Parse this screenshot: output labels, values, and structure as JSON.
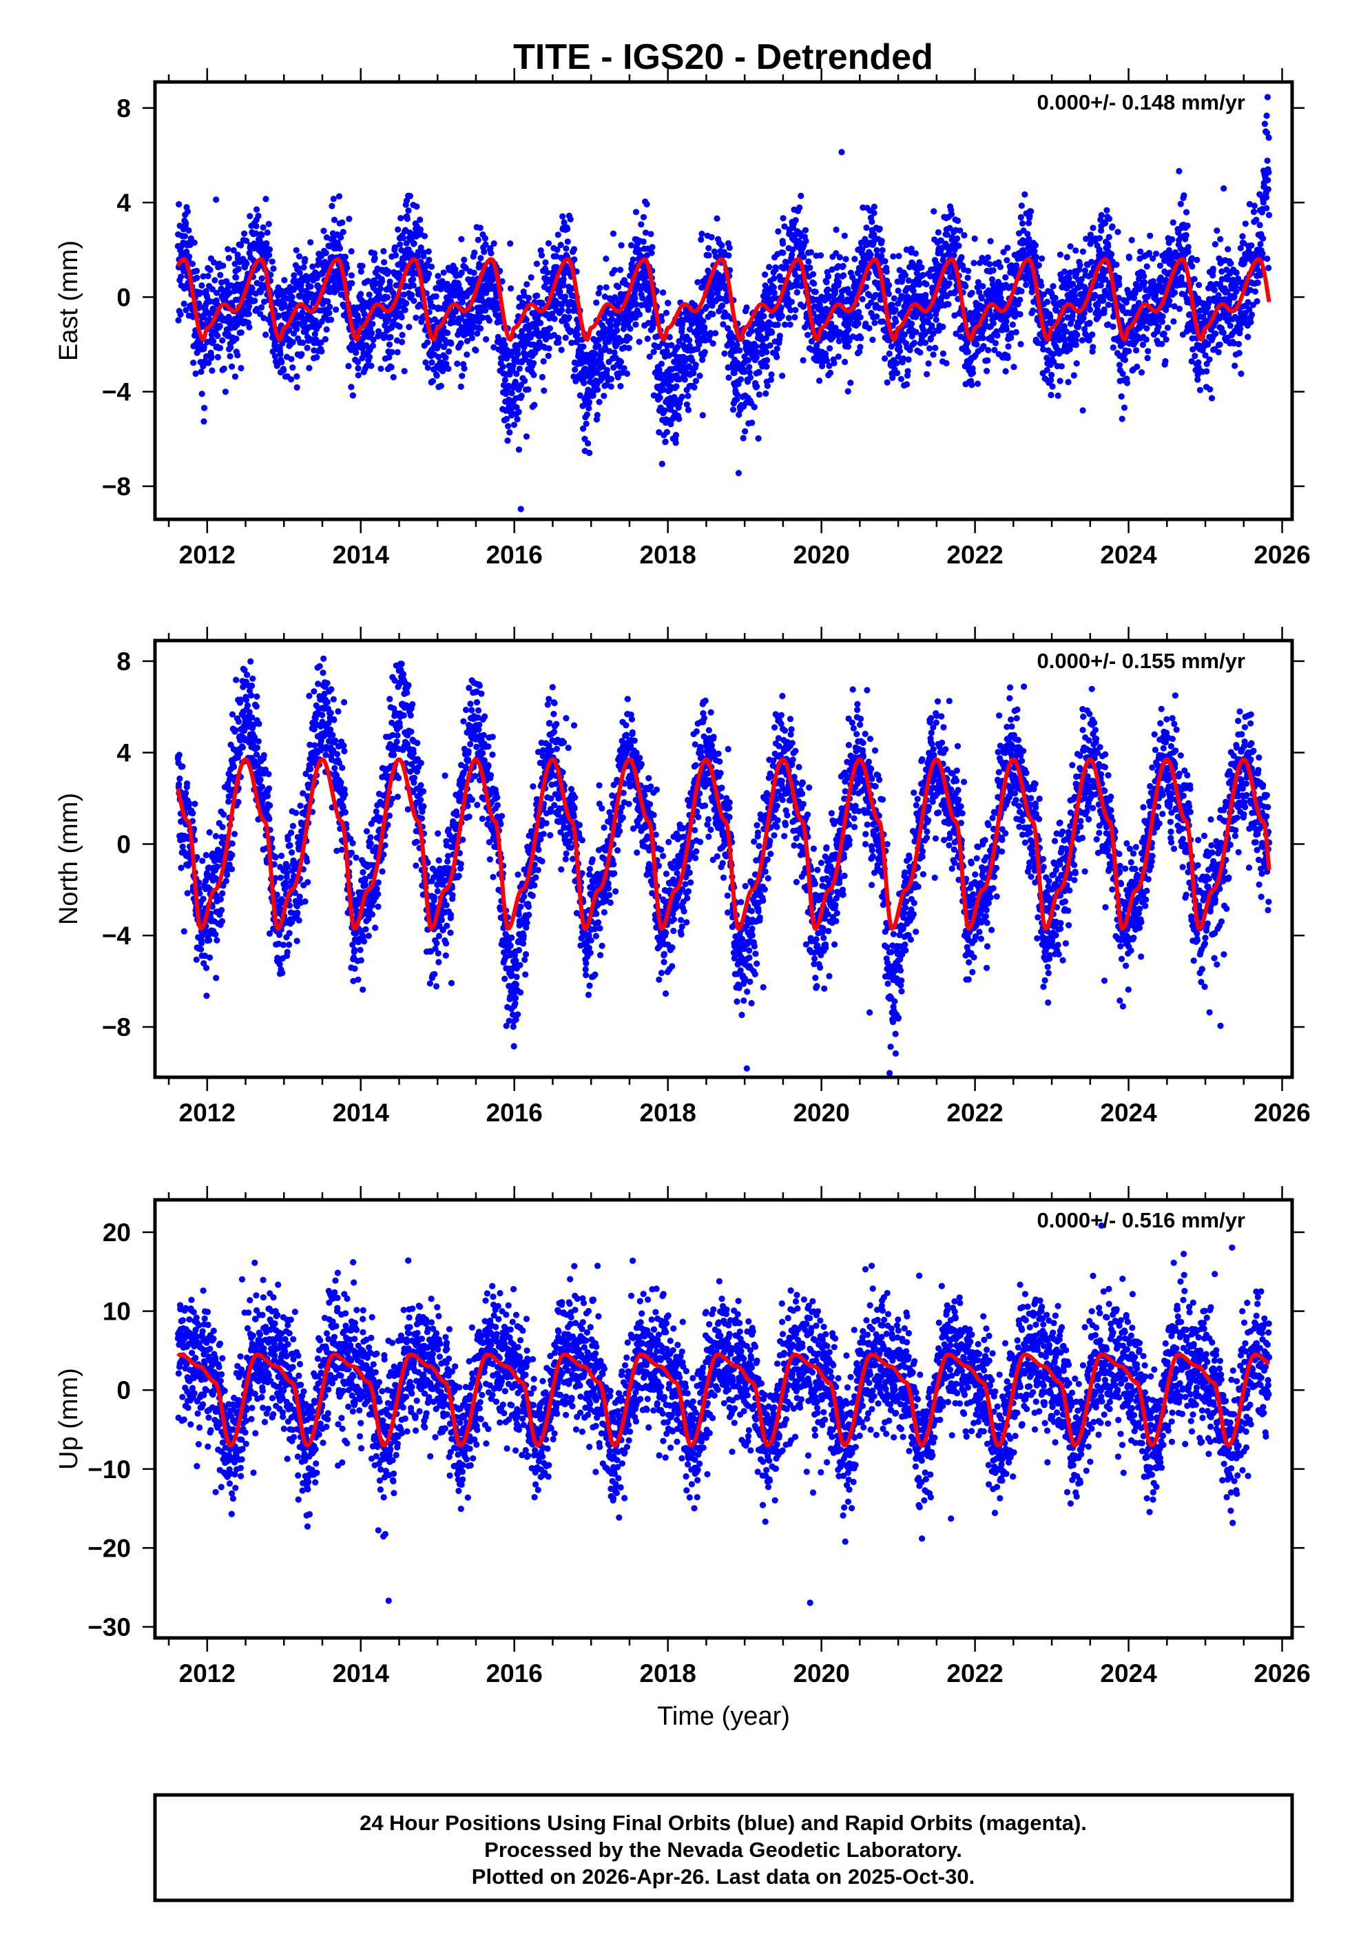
{
  "title": "TITE - IGS20 - Detrended",
  "footer": {
    "line1": "24 Hour Positions Using Final Orbits (blue) and Rapid Orbits (magenta).",
    "line2": "Processed by the Nevada Geodetic Laboratory.",
    "line3": "Plotted on 2026-Apr-26. Last data on 2025-Oct-30."
  },
  "colors": {
    "points": "#0000ff",
    "fit": "#ff0000",
    "frame": "#000000"
  },
  "chart_data": [
    {
      "type": "scatter",
      "ylabel": "East (mm)",
      "xlabel": "",
      "rate": "0.000+/- 0.148 mm/yr",
      "xlim": [
        2011.32,
        2026.13
      ],
      "ylim": [
        -9.4,
        9.1
      ],
      "xticks": [
        "2012",
        "2014",
        "2016",
        "2018",
        "2020",
        "2022",
        "2024",
        "2026"
      ],
      "yticks": [
        "8",
        "4",
        "0",
        "-4",
        "-8"
      ],
      "data_span": [
        2011.62,
        2025.83
      ],
      "seasonal_fit": {
        "phase": [
          0.0,
          0.22,
          0.35,
          0.7,
          0.95
        ],
        "value": [
          -1.3,
          -0.3,
          -0.6,
          1.6,
          -1.8
        ]
      },
      "anomalies": [
        {
          "center": 2016.0,
          "width": 0.3,
          "amp": -2.5
        },
        {
          "center": 2017.0,
          "width": 0.3,
          "amp": -2.5
        },
        {
          "center": 2018.1,
          "width": 0.3,
          "amp": -3.0
        },
        {
          "center": 2019.0,
          "width": 0.3,
          "amp": -2.0
        },
        {
          "center": 2025.8,
          "width": 0.06,
          "amp": 6.0
        }
      ],
      "noise_sd": 1.2
    },
    {
      "type": "scatter",
      "ylabel": "North (mm)",
      "xlabel": "",
      "rate": "0.000+/- 0.155 mm/yr",
      "xlim": [
        2011.32,
        2026.13
      ],
      "ylim": [
        -10.2,
        8.9
      ],
      "xticks": [
        "2012",
        "2014",
        "2016",
        "2018",
        "2020",
        "2022",
        "2024",
        "2026"
      ],
      "yticks": [
        "8",
        "4",
        "0",
        "-4",
        "-8"
      ],
      "data_span": [
        2011.62,
        2025.83
      ],
      "seasonal_fit": {
        "phase": [
          0.1,
          0.5,
          0.75,
          0.92
        ],
        "value": [
          -2.0,
          3.7,
          1.0,
          -3.7
        ]
      },
      "anomalies": [
        {
          "center": 2012.55,
          "width": 0.2,
          "amp": 2.5
        },
        {
          "center": 2013.55,
          "width": 0.2,
          "amp": 2.5
        },
        {
          "center": 2014.55,
          "width": 0.2,
          "amp": 3.0
        },
        {
          "center": 2015.5,
          "width": 0.2,
          "amp": 1.5
        },
        {
          "center": 2016.0,
          "width": 0.15,
          "amp": -3.0
        },
        {
          "center": 2019.0,
          "width": 0.15,
          "amp": -2.0
        },
        {
          "center": 2020.95,
          "width": 0.15,
          "amp": -3.5
        }
      ],
      "noise_sd": 1.3
    },
    {
      "type": "scatter",
      "ylabel": "Up (mm)",
      "xlabel": "Time (year)",
      "rate": "0.000+/- 0.516 mm/yr",
      "xlim": [
        2011.32,
        2026.13
      ],
      "ylim": [
        -31.4,
        24.1
      ],
      "xticks": [
        "2012",
        "2014",
        "2016",
        "2018",
        "2020",
        "2022",
        "2024",
        "2026"
      ],
      "yticks": [
        "20",
        "10",
        "0",
        "-10",
        "-20",
        "-30"
      ],
      "data_span": [
        2011.62,
        2025.83
      ],
      "seasonal_fit": {
        "phase": [
          0.1,
          0.3,
          0.65,
          0.9
        ],
        "value": [
          1.0,
          -7.0,
          4.5,
          3.0
        ]
      },
      "anomalies": [],
      "noise_sd": 4.0
    }
  ]
}
